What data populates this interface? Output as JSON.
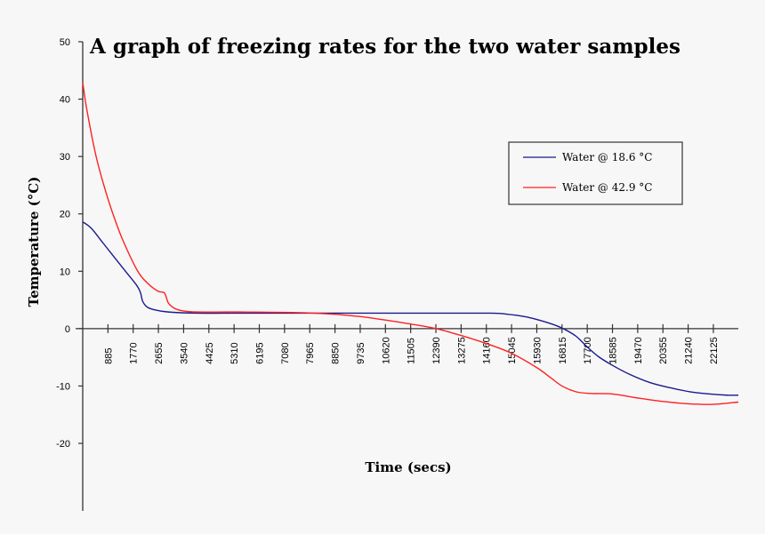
{
  "chart_data": {
    "type": "line",
    "title": "A graph of freezing rates for the two water samples",
    "xlabel": "Time (secs)",
    "ylabel": "Temperature (°C)",
    "xlim": [
      0,
      23000
    ],
    "ylim": [
      -20,
      50
    ],
    "x_tick_labels": [
      "885",
      "1770",
      "2655",
      "3540",
      "4425",
      "5310",
      "6195",
      "7080",
      "7965",
      "8850",
      "9735",
      "10620",
      "11505",
      "12390",
      "13275",
      "14160",
      "15045",
      "15930",
      "16815",
      "17700",
      "18585",
      "19470",
      "20355",
      "21240",
      "22125"
    ],
    "y_ticks": [
      -20,
      -10,
      0,
      10,
      20,
      30,
      40,
      50
    ],
    "grid": false,
    "legend_position": "right",
    "series": [
      {
        "name": "Water @ 18.6 °C",
        "color": "#1a1a8c",
        "x": [
          0,
          300,
          700,
          1100,
          1500,
          1900,
          2030,
          2100,
          2250,
          2500,
          3000,
          4000,
          6000,
          9000,
          12000,
          14300,
          14900,
          15500,
          15930,
          16400,
          16815,
          17300,
          17700,
          18100,
          18585,
          19200,
          19900,
          20600,
          21300,
          22000,
          22600,
          23000
        ],
        "y": [
          18.6,
          17.5,
          15,
          12.5,
          10,
          7.5,
          6.2,
          4.8,
          3.8,
          3.3,
          2.9,
          2.7,
          2.7,
          2.7,
          2.7,
          2.7,
          2.5,
          2.1,
          1.6,
          0.9,
          0.1,
          -1.3,
          -3.2,
          -4.9,
          -6.4,
          -8.0,
          -9.4,
          -10.3,
          -11.0,
          -11.4,
          -11.6,
          -11.6
        ]
      },
      {
        "name": "Water @ 42.9 °C",
        "color": "#ff2020",
        "x": [
          0,
          150,
          470,
          800,
          1060,
          1400,
          1930,
          2300,
          2650,
          2870,
          3000,
          3200,
          3500,
          4000,
          5500,
          7500,
          8850,
          9735,
          10620,
          11505,
          12390,
          13275,
          14160,
          15045,
          15930,
          16400,
          16815,
          17300,
          17800,
          18585,
          19470,
          20355,
          21240,
          22125,
          23000
        ],
        "y": [
          42.9,
          38,
          30,
          24,
          20,
          15.5,
          10,
          7.8,
          6.5,
          6.2,
          4.5,
          3.6,
          3.1,
          2.9,
          2.9,
          2.8,
          2.5,
          2.1,
          1.5,
          0.8,
          0,
          -1.2,
          -2.6,
          -4.3,
          -6.8,
          -8.5,
          -10.0,
          -11.0,
          -11.3,
          -11.4,
          -12.1,
          -12.7,
          -13.1,
          -13.2,
          -12.8
        ]
      }
    ]
  }
}
